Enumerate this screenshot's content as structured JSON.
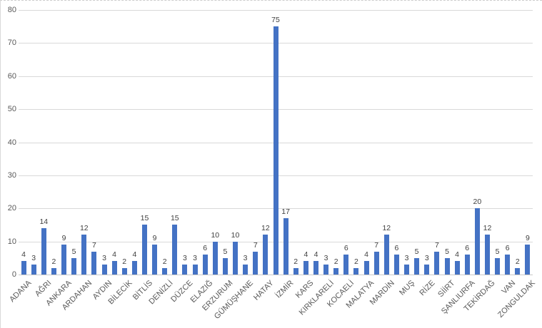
{
  "chart_data": {
    "type": "bar",
    "title": "",
    "xlabel": "",
    "ylabel": "",
    "ylim": [
      0,
      80
    ],
    "yticks": [
      0,
      10,
      20,
      30,
      40,
      50,
      60,
      70,
      80
    ],
    "grid": true,
    "legend": false,
    "data_labels": true,
    "bar_color": "#4472C4",
    "gridline_color": "#D9D9D9",
    "axis_line_color": "#C9C9C9",
    "tick_label_color": "#595959",
    "data_label_color": "#404040",
    "categories": [
      "ADANA",
      "",
      "AĞRI",
      "",
      "ANKARA",
      "",
      "ARDAHAN",
      "",
      "AYDIN",
      "",
      "BİLECİK",
      "",
      "BİTLİS",
      "",
      "DENİZLİ",
      "",
      "DÜZCE",
      "",
      "ELAZIĞ",
      "",
      "ERZURUM",
      "",
      "GÜMÜŞHANE",
      "",
      "HATAY",
      "",
      "İZMİR",
      "",
      "KARS",
      "",
      "KIRKLARELİ",
      "",
      "KOCAELİ",
      "",
      "MALATYA",
      "",
      "MARDİN",
      "",
      "MUŞ",
      "",
      "RİZE",
      "",
      "SİİRT",
      "",
      "ŞANLIURFA",
      "",
      "TEKİRDAĞ",
      "",
      "VAN",
      "",
      "ZONGULDAK"
    ],
    "values": [
      4,
      3,
      14,
      2,
      9,
      5,
      12,
      7,
      3,
      4,
      2,
      4,
      15,
      9,
      2,
      15,
      3,
      3,
      6,
      10,
      5,
      10,
      3,
      7,
      12,
      75,
      17,
      2,
      4,
      4,
      3,
      2,
      6,
      2,
      4,
      7,
      12,
      6,
      3,
      5,
      3,
      7,
      5,
      4,
      6,
      20,
      12,
      5,
      6,
      2,
      9
    ]
  }
}
